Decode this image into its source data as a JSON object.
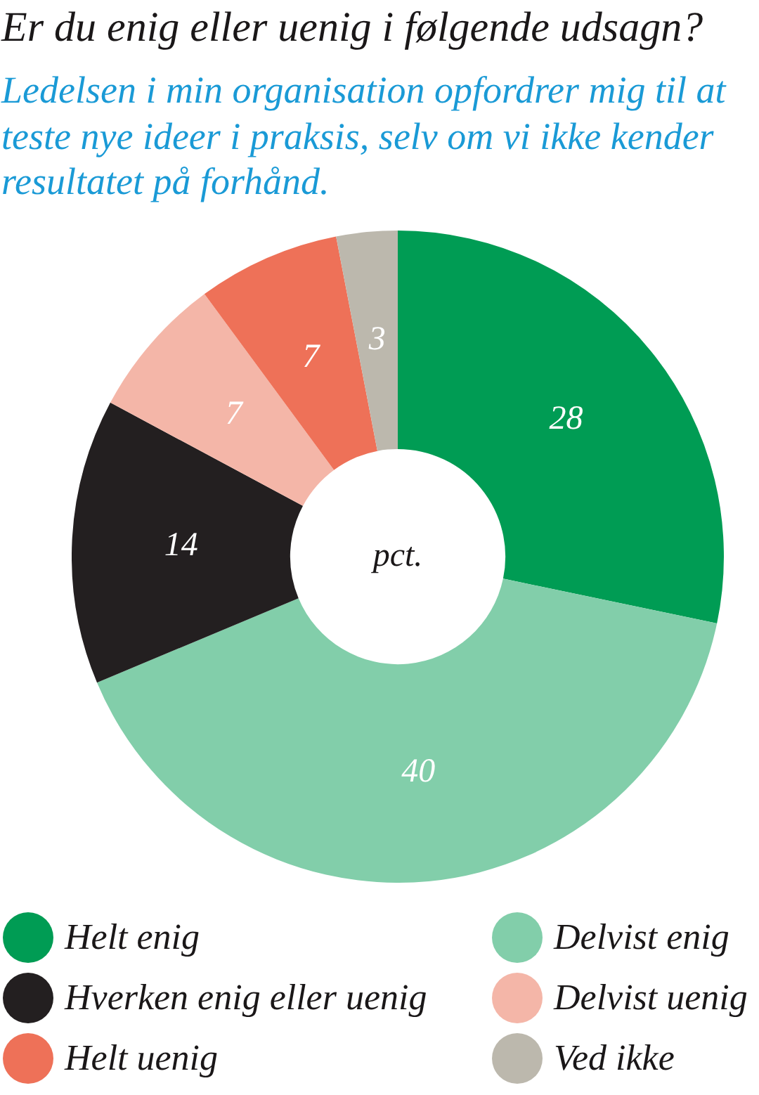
{
  "chart_data": {
    "type": "donut",
    "title": "Er du enig eller uenig i følgende udsagn?",
    "subtitle": "Ledelsen i min organisation opfordrer mig til at teste nye ideer i praksis, selv om vi ikke kender resultatet på forhånd.",
    "categories": [
      "Helt enig",
      "Delvist enig",
      "Hverken enig eller uenig",
      "Delvist uenig",
      "Helt uenig",
      "Ved ikke"
    ],
    "values": [
      28,
      40,
      14,
      7,
      7,
      3
    ],
    "colors": [
      "#009c54",
      "#82ceaa",
      "#231f20",
      "#f4b6a8",
      "#ee7158",
      "#bcb8ad"
    ],
    "data_labels": true,
    "legend": "bottom",
    "annotations": [
      "pct."
    ]
  }
}
